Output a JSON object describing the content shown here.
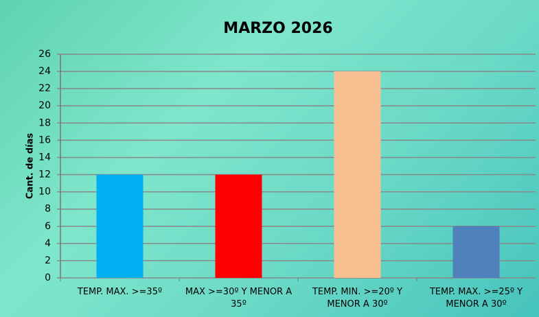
{
  "chart_data": {
    "type": "bar",
    "title": "MARZO 2026",
    "y_label": "Cant. de días",
    "categories": [
      "TEMP. MAX. >=35º",
      "MAX >=30º Y MENOR A 35º",
      "TEMP. MIN. >=20º Y MENOR A 30º",
      "TEMP. MAX. >=25º Y MENOR A 30º"
    ],
    "values": [
      12,
      12,
      24,
      6
    ],
    "colors": [
      "#00b0f0",
      "#ff0000",
      "#f8c090",
      "#4f81bd"
    ],
    "ylim": [
      0,
      26
    ],
    "yticks": [
      0,
      2,
      4,
      6,
      8,
      10,
      12,
      14,
      16,
      18,
      20,
      22,
      24,
      26
    ],
    "grid": true
  }
}
